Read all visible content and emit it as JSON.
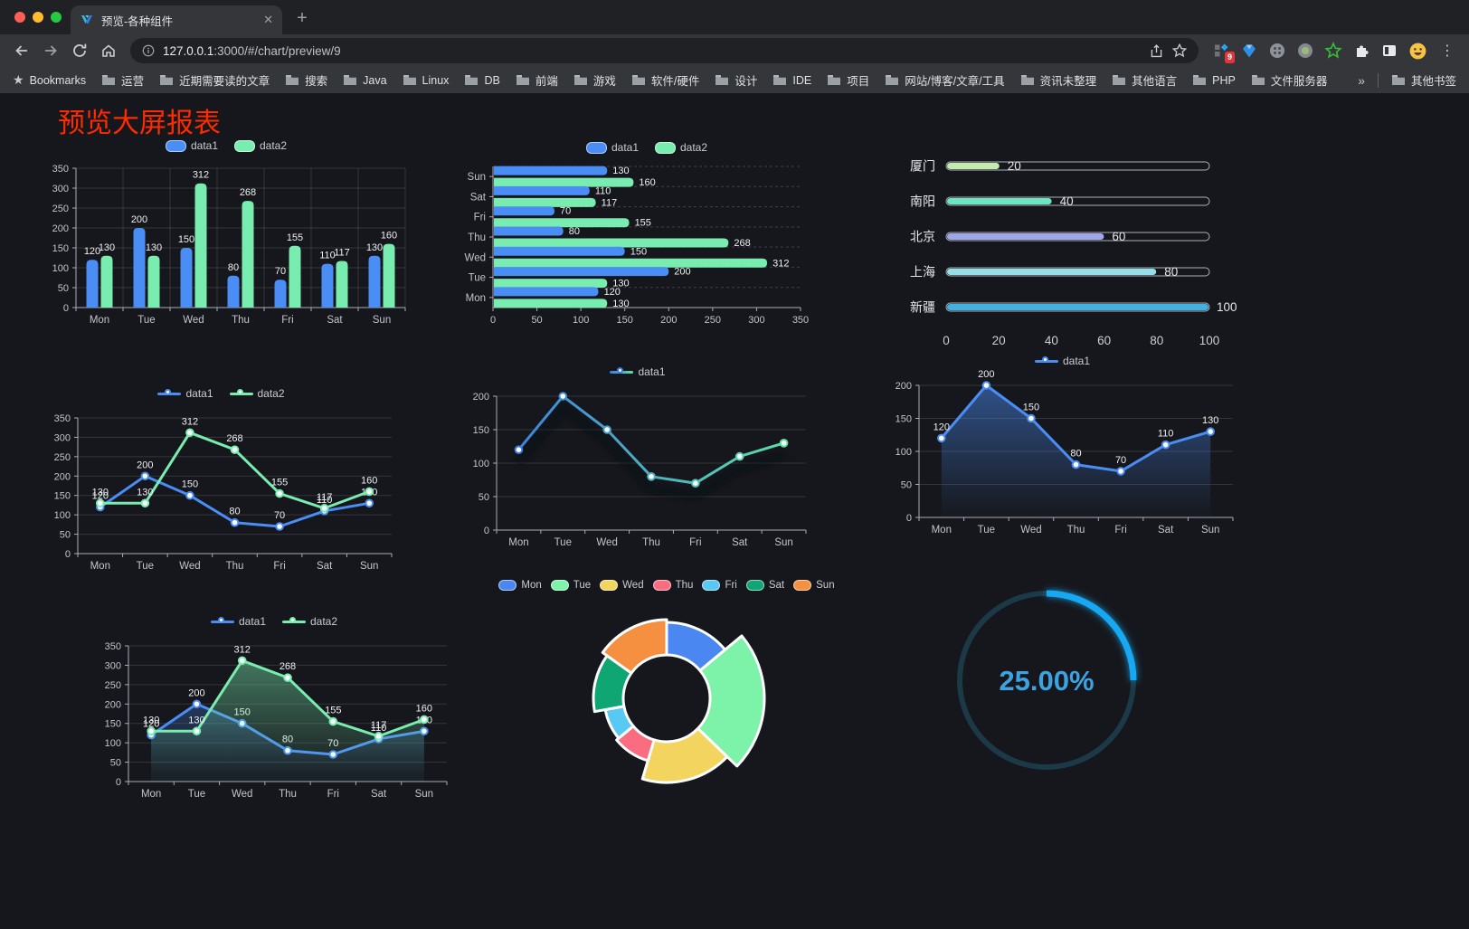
{
  "browser": {
    "traffic_lights": [
      "#ff5f57",
      "#febc2e",
      "#28c840"
    ],
    "tab_title": "预览-各种组件",
    "url_host": "127.0.0.1",
    "url_rest": ":3000/#/chart/preview/9",
    "bookmarks_bar_label": "Bookmarks",
    "bookmarks": [
      "运营",
      "近期需要读的文章",
      "搜索",
      "Java",
      "Linux",
      "DB",
      "前端",
      "游戏",
      "软件/硬件",
      "设计",
      "IDE",
      "项目",
      "网站/博客/文章/工具",
      "资讯未整理",
      "其他语言",
      "PHP",
      "文件服务器"
    ],
    "overflow_chevron": "»",
    "other_bookmarks": "其他书签",
    "extension_badge_count": "9"
  },
  "page": {
    "title": "预览大屏报表"
  },
  "chart_data": [
    {
      "id": "bar-grouped",
      "type": "bar",
      "categories": [
        "Mon",
        "Tue",
        "Wed",
        "Thu",
        "Fri",
        "Sat",
        "Sun"
      ],
      "series": [
        {
          "name": "data1",
          "color": "#4a8df5",
          "values": [
            120,
            200,
            150,
            80,
            70,
            110,
            130
          ]
        },
        {
          "name": "data2",
          "color": "#79ecb0",
          "values": [
            130,
            130,
            312,
            268,
            155,
            117,
            160
          ]
        }
      ],
      "ylim": [
        0,
        350
      ],
      "ytick": 50,
      "legend": "top",
      "labels": true,
      "grid": true
    },
    {
      "id": "bar-horizontal",
      "type": "hbar",
      "categories": [
        "Mon",
        "Tue",
        "Wed",
        "Thu",
        "Fri",
        "Sat",
        "Sun"
      ],
      "series": [
        {
          "name": "data1",
          "color": "#4a8df5",
          "values": [
            120,
            200,
            150,
            80,
            70,
            110,
            130
          ]
        },
        {
          "name": "data2",
          "color": "#79ecb0",
          "values": [
            130,
            130,
            312,
            268,
            155,
            117,
            160
          ]
        }
      ],
      "xlim": [
        0,
        350
      ],
      "xtick": 50,
      "legend": "top",
      "labels": true
    },
    {
      "id": "progress-list",
      "type": "progress",
      "rows": [
        {
          "label": "厦门",
          "value": 20,
          "color": "#c4ebad"
        },
        {
          "label": "南阳",
          "value": 40,
          "color": "#6be6c1"
        },
        {
          "label": "北京",
          "value": 60,
          "color": "#a0a7e6"
        },
        {
          "label": "上海",
          "value": 80,
          "color": "#96dee8"
        },
        {
          "label": "新疆",
          "value": 100,
          "color": "#3fb1e3"
        }
      ],
      "xlim": [
        0,
        100
      ],
      "xticks": [
        0,
        20,
        40,
        60,
        80,
        100
      ]
    },
    {
      "id": "line-dual",
      "type": "line",
      "categories": [
        "Mon",
        "Tue",
        "Wed",
        "Thu",
        "Fri",
        "Sat",
        "Sun"
      ],
      "series": [
        {
          "name": "data1",
          "color": "#4a8df5",
          "values": [
            120,
            200,
            150,
            80,
            70,
            110,
            130
          ]
        },
        {
          "name": "data2",
          "color": "#79ecb0",
          "values": [
            130,
            130,
            312,
            268,
            155,
            117,
            160
          ]
        }
      ],
      "ylim": [
        0,
        350
      ],
      "ytick": 50,
      "legend": "top",
      "labels": true
    },
    {
      "id": "line-gradient",
      "type": "line",
      "categories": [
        "Mon",
        "Tue",
        "Wed",
        "Thu",
        "Fri",
        "Sat",
        "Sun"
      ],
      "series": [
        {
          "name": "data1",
          "gradient": [
            "#3b7ce0",
            "#5fe3a1"
          ],
          "values": [
            120,
            200,
            150,
            80,
            70,
            110,
            130
          ],
          "shadow": true
        }
      ],
      "ylim": [
        0,
        200
      ],
      "ytick": 50,
      "legend": "top",
      "labels": false
    },
    {
      "id": "area-single",
      "type": "line",
      "categories": [
        "Mon",
        "Tue",
        "Wed",
        "Thu",
        "Fri",
        "Sat",
        "Sun"
      ],
      "series": [
        {
          "name": "data1",
          "color": "#4a8df5",
          "area": true,
          "values": [
            120,
            200,
            150,
            80,
            70,
            110,
            130
          ]
        }
      ],
      "ylim": [
        0,
        200
      ],
      "ytick": 50,
      "legend": "top",
      "labels": true
    },
    {
      "id": "area-dual",
      "type": "line",
      "categories": [
        "Mon",
        "Tue",
        "Wed",
        "Thu",
        "Fri",
        "Sat",
        "Sun"
      ],
      "series": [
        {
          "name": "data1",
          "color": "#4a8df5",
          "area": true,
          "values": [
            120,
            200,
            150,
            80,
            70,
            110,
            130
          ]
        },
        {
          "name": "data2",
          "color": "#79ecb0",
          "area": true,
          "values": [
            130,
            130,
            312,
            268,
            155,
            117,
            160
          ]
        }
      ],
      "ylim": [
        0,
        350
      ],
      "ytick": 50,
      "legend": "top",
      "labels": true
    },
    {
      "id": "donut-rose",
      "type": "pie",
      "items": [
        {
          "name": "Mon",
          "value": 120,
          "color": "#4b87f1"
        },
        {
          "name": "Tue",
          "value": 200,
          "color": "#7df2a9"
        },
        {
          "name": "Wed",
          "value": 150,
          "color": "#f2d45f"
        },
        {
          "name": "Thu",
          "value": 80,
          "color": "#fa6d80"
        },
        {
          "name": "Fri",
          "value": 70,
          "color": "#58c9f2"
        },
        {
          "name": "Sat",
          "value": 110,
          "color": "#10a674"
        },
        {
          "name": "Sun",
          "value": 130,
          "color": "#f59041"
        }
      ],
      "legend": "top",
      "inner_radius": 48,
      "outer_radius": 108
    },
    {
      "id": "gauge-percent",
      "type": "gauge",
      "value": 25,
      "label": "25.00%",
      "color": "#18a8f2",
      "track_color": "#1c3947",
      "text_color": "#3ca2e0"
    }
  ]
}
